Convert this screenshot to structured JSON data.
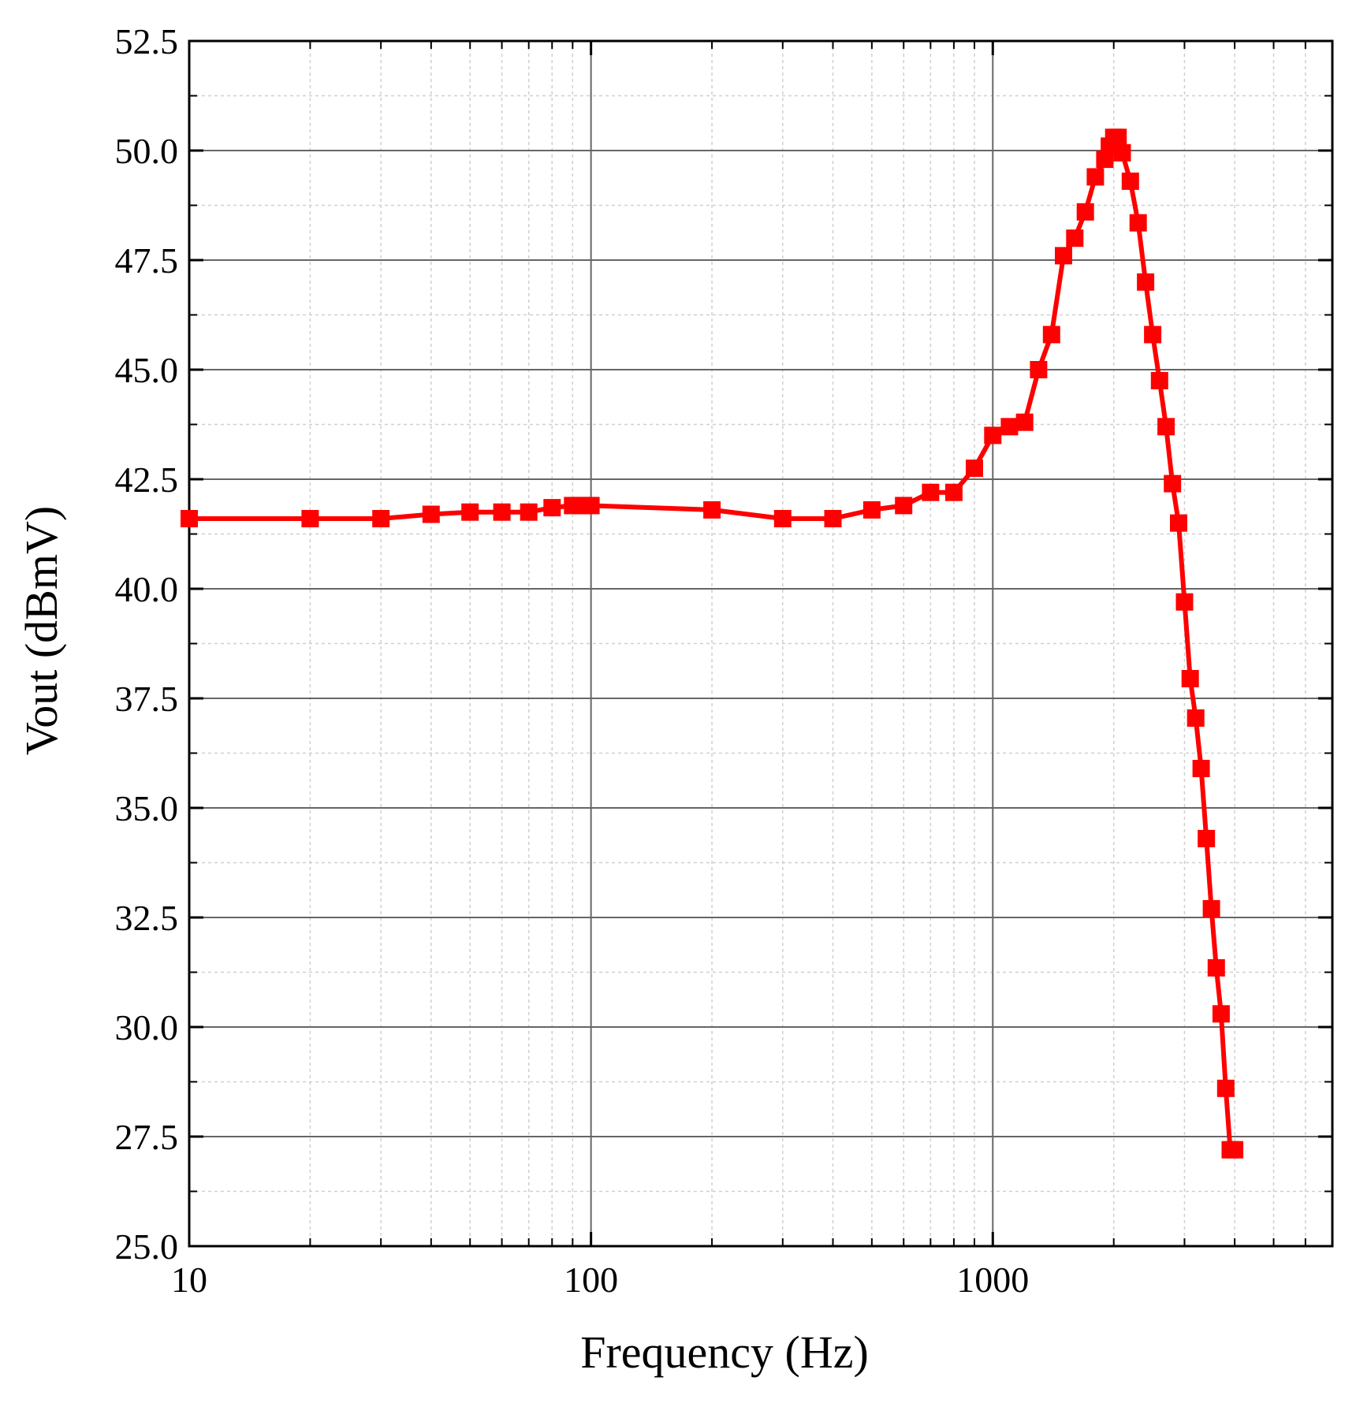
{
  "chart_data": {
    "type": "line",
    "title": "",
    "xlabel": "Frequency (Hz)",
    "ylabel": "Vout (dBmV)",
    "x_scale": "log",
    "xlim": [
      10,
      7000
    ],
    "ylim": [
      25.0,
      52.5
    ],
    "x_ticks": [
      10,
      100,
      1000
    ],
    "x_tick_labels": [
      "10",
      "100",
      "1000"
    ],
    "y_ticks": [
      25.0,
      27.5,
      30.0,
      32.5,
      35.0,
      37.5,
      40.0,
      42.5,
      45.0,
      47.5,
      50.0,
      52.5
    ],
    "y_tick_labels": [
      "25.0",
      "27.5",
      "30.0",
      "32.5",
      "35.0",
      "37.5",
      "40.0",
      "42.5",
      "45.0",
      "47.5",
      "50.0",
      "52.5"
    ],
    "grid": true,
    "legend": "none",
    "series": [
      {
        "name": "Vout",
        "color": "#ff0000",
        "marker": "square",
        "x": [
          10,
          20,
          30,
          40,
          50,
          60,
          70,
          80,
          90,
          95,
          100,
          200,
          300,
          400,
          500,
          600,
          700,
          800,
          900,
          1000,
          1100,
          1200,
          1300,
          1400,
          1500,
          1600,
          1700,
          1800,
          1900,
          1950,
          2000,
          2050,
          2100,
          2200,
          2300,
          2400,
          2500,
          2600,
          2700,
          2800,
          2900,
          3000,
          3100,
          3200,
          3300,
          3400,
          3500,
          3600,
          3700,
          3800,
          3900,
          4000
        ],
        "y": [
          41.6,
          41.6,
          41.6,
          41.7,
          41.75,
          41.75,
          41.75,
          41.85,
          41.9,
          41.9,
          41.9,
          41.8,
          41.6,
          41.6,
          41.8,
          41.9,
          42.2,
          42.2,
          42.75,
          43.5,
          43.7,
          43.8,
          45.0,
          45.8,
          47.6,
          48.0,
          48.6,
          49.4,
          49.8,
          50.1,
          50.3,
          50.3,
          49.95,
          49.3,
          48.35,
          47.0,
          45.8,
          44.75,
          43.7,
          42.4,
          41.5,
          39.7,
          37.95,
          37.05,
          35.9,
          34.3,
          32.7,
          31.35,
          30.3,
          28.6,
          27.2,
          27.2
        ]
      }
    ]
  }
}
